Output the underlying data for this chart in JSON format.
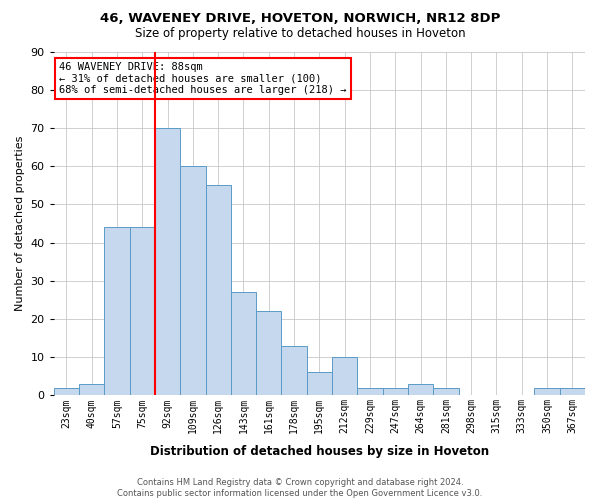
{
  "title1": "46, WAVENEY DRIVE, HOVETON, NORWICH, NR12 8DP",
  "title2": "Size of property relative to detached houses in Hoveton",
  "xlabel": "Distribution of detached houses by size in Hoveton",
  "ylabel": "Number of detached properties",
  "footnote1": "Contains HM Land Registry data © Crown copyright and database right 2024.",
  "footnote2": "Contains public sector information licensed under the Open Government Licence v3.0.",
  "annotation_line1": "46 WAVENEY DRIVE: 88sqm",
  "annotation_line2": "← 31% of detached houses are smaller (100)",
  "annotation_line3": "68% of semi-detached houses are larger (218) →",
  "bar_labels": [
    "23sqm",
    "40sqm",
    "57sqm",
    "75sqm",
    "92sqm",
    "109sqm",
    "126sqm",
    "143sqm",
    "161sqm",
    "178sqm",
    "195sqm",
    "212sqm",
    "229sqm",
    "247sqm",
    "264sqm",
    "281sqm",
    "298sqm",
    "315sqm",
    "333sqm",
    "350sqm",
    "367sqm"
  ],
  "bar_values": [
    2,
    3,
    44,
    44,
    70,
    60,
    55,
    27,
    22,
    13,
    6,
    10,
    2,
    2,
    3,
    2,
    0,
    0,
    0,
    2,
    2
  ],
  "bar_color": "#c5d8ed",
  "bar_edge_color": "#5b9bc8",
  "vline_color": "red",
  "vline_pos": 3.5,
  "ylim": [
    0,
    90
  ],
  "yticks": [
    0,
    10,
    20,
    30,
    40,
    50,
    60,
    70,
    80,
    90
  ],
  "grid_color": "#c8c8c8",
  "bg_color": "#ffffff",
  "title1_fontsize": 9.5,
  "title2_fontsize": 8.5,
  "xlabel_fontsize": 8.5,
  "ylabel_fontsize": 8,
  "tick_fontsize": 7,
  "ytick_fontsize": 8,
  "footnote_fontsize": 6,
  "ann_fontsize": 7.5
}
